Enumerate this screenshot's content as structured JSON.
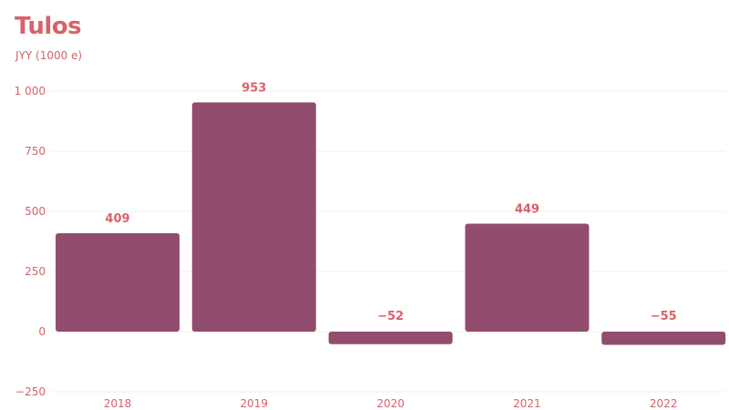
{
  "chart_data": {
    "type": "bar",
    "title": "Tulos",
    "subtitle": "JYY (1000 e)",
    "xlabel": "",
    "ylabel": "",
    "categories": [
      "2018",
      "2019",
      "2020",
      "2021",
      "2022"
    ],
    "values": [
      409,
      953,
      -52,
      449,
      -55
    ],
    "data_labels": [
      "409",
      "953",
      "−52",
      "449",
      "−55"
    ],
    "ylim": [
      -250,
      1000
    ],
    "yticks": [
      -250,
      0,
      250,
      500,
      750,
      1000
    ],
    "ytick_labels": [
      "−250",
      "0",
      "250",
      "500",
      "750",
      "1 000"
    ],
    "grid": true,
    "legend": "none",
    "colors": {
      "bar": "#924d6e",
      "text": "#d9616a",
      "grid": "#f1f1f1"
    }
  }
}
